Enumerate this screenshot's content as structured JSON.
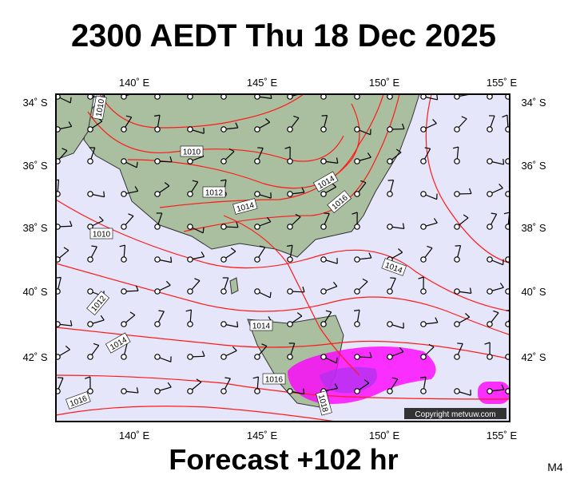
{
  "header": {
    "title": "2300 AEDT Thu 18 Dec 2025"
  },
  "map": {
    "lon_labels": [
      "140˚ E",
      "145˚ E",
      "150˚ E",
      "155˚ E"
    ],
    "lat_labels": [
      "34˚ S",
      "36˚ S",
      "38˚ S",
      "40˚ S",
      "42˚ S"
    ],
    "isobar_labels": [
      "1010",
      "1010",
      "1012",
      "1014",
      "1014",
      "1016",
      "1010",
      "1014",
      "1012",
      "1014",
      "1014",
      "1016",
      "1016",
      "1018"
    ],
    "copyright": "Copyright metvuw.com"
  },
  "footer": {
    "forecast": "Forecast +102 hr",
    "model": "M4"
  }
}
